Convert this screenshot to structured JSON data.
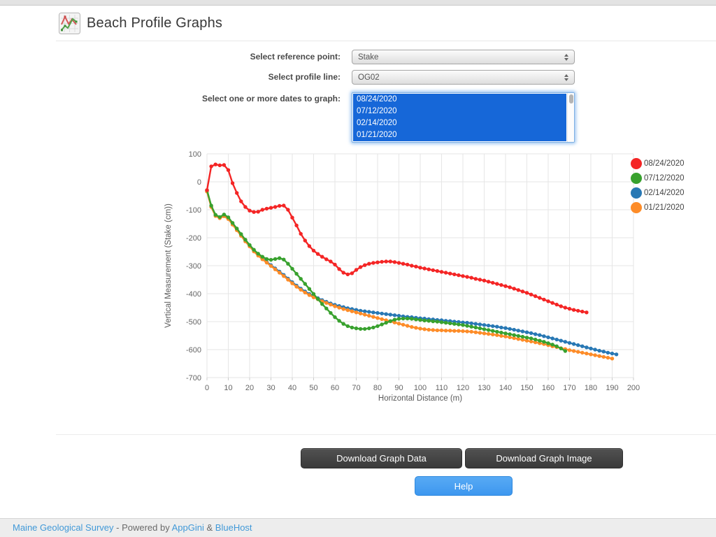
{
  "page": {
    "title": "Beach Profile Graphs",
    "icon": "line-chart-icon"
  },
  "form": {
    "reference_label": "Select reference point:",
    "reference_value": "Stake",
    "profile_label": "Select profile line:",
    "profile_value": "OG02",
    "dates_label": "Select one or more dates to graph:",
    "date_options": [
      "08/24/2020",
      "07/12/2020",
      "02/14/2020",
      "01/21/2020"
    ],
    "selected_dates": [
      "08/24/2020",
      "07/12/2020",
      "02/14/2020",
      "01/21/2020"
    ]
  },
  "buttons": {
    "download_data": "Download Graph Data",
    "download_image": "Download Graph Image",
    "help": "Help"
  },
  "footer": {
    "link1": "Maine Geological Survey",
    "sep1": " - Powered by ",
    "link2": "AppGini",
    "sep2": " & ",
    "link3": "BlueHost"
  },
  "colors": {
    "selection_blue": "#1667d8",
    "link_blue": "#4199d8",
    "help_button_blue": "#459ff1",
    "dark_button_gray": "#444444",
    "grid_gray": "#e6e6e6",
    "tick_text_gray": "#656565"
  },
  "chart_data": {
    "type": "line",
    "title": "",
    "xlabel": "Horizontal Distance (m)",
    "ylabel": "Vertical Measurement (Stake (cm))",
    "xlim": [
      0,
      200
    ],
    "ylim": [
      -700,
      100
    ],
    "xticks": [
      0,
      10,
      20,
      30,
      40,
      50,
      60,
      70,
      80,
      90,
      100,
      110,
      120,
      130,
      140,
      150,
      160,
      170,
      180,
      190,
      200
    ],
    "yticks": [
      100,
      0,
      -100,
      -200,
      -300,
      -400,
      -500,
      -600,
      -700
    ],
    "grid": true,
    "legend_position": "right",
    "marker": "circle",
    "series": [
      {
        "name": "08/24/2020",
        "color": "#f42525",
        "x": [
          0,
          2,
          4,
          6,
          8,
          10,
          12,
          14,
          16,
          18,
          20,
          22,
          24,
          26,
          28,
          30,
          32,
          34,
          36,
          38,
          40,
          42,
          44,
          46,
          48,
          50,
          52,
          54,
          56,
          58,
          60,
          62,
          64,
          66,
          68,
          70,
          72,
          74,
          76,
          78,
          80,
          82,
          84,
          86,
          88,
          90,
          92,
          94,
          96,
          98,
          100,
          102,
          104,
          106,
          108,
          110,
          112,
          114,
          116,
          118,
          120,
          122,
          124,
          126,
          128,
          130,
          132,
          134,
          136,
          138,
          140,
          142,
          144,
          146,
          148,
          150,
          152,
          154,
          156,
          158,
          160,
          162,
          164,
          166,
          168,
          170,
          172,
          174,
          176,
          178
        ],
        "y": [
          -30,
          55,
          62,
          59,
          60,
          42,
          -5,
          -40,
          -70,
          -90,
          -103,
          -108,
          -107,
          -100,
          -96,
          -93,
          -90,
          -86,
          -85,
          -100,
          -128,
          -156,
          -186,
          -210,
          -230,
          -246,
          -258,
          -268,
          -277,
          -285,
          -296,
          -312,
          -325,
          -331,
          -327,
          -315,
          -305,
          -298,
          -293,
          -290,
          -288,
          -286,
          -285,
          -285,
          -287,
          -290,
          -293,
          -296,
          -300,
          -303,
          -307,
          -310,
          -313,
          -316,
          -319,
          -322,
          -325,
          -328,
          -331,
          -334,
          -337,
          -340,
          -343,
          -347,
          -350,
          -353,
          -357,
          -361,
          -365,
          -369,
          -373,
          -377,
          -382,
          -387,
          -392,
          -397,
          -403,
          -409,
          -415,
          -421,
          -427,
          -433,
          -439,
          -445,
          -450,
          -454,
          -458,
          -461,
          -464,
          -467
        ]
      },
      {
        "name": "07/12/2020",
        "color": "#38a12e",
        "x": [
          0,
          2,
          4,
          6,
          8,
          10,
          12,
          14,
          16,
          18,
          20,
          22,
          24,
          26,
          28,
          30,
          32,
          34,
          36,
          38,
          40,
          42,
          44,
          46,
          48,
          50,
          52,
          54,
          56,
          58,
          60,
          62,
          64,
          66,
          68,
          70,
          72,
          74,
          76,
          78,
          80,
          82,
          84,
          86,
          88,
          90,
          92,
          94,
          96,
          98,
          100,
          102,
          104,
          106,
          108,
          110,
          112,
          114,
          116,
          118,
          120,
          122,
          124,
          126,
          128,
          130,
          132,
          134,
          136,
          138,
          140,
          142,
          144,
          146,
          148,
          150,
          152,
          154,
          156,
          158,
          160,
          162,
          164,
          166,
          168
        ],
        "y": [
          -30,
          -85,
          -118,
          -126,
          -117,
          -127,
          -147,
          -167,
          -187,
          -207,
          -226,
          -243,
          -257,
          -268,
          -276,
          -279,
          -276,
          -273,
          -278,
          -293,
          -311,
          -329,
          -347,
          -365,
          -383,
          -401,
          -419,
          -437,
          -453,
          -469,
          -484,
          -497,
          -508,
          -516,
          -521,
          -524,
          -526,
          -526,
          -524,
          -521,
          -516,
          -510,
          -504,
          -498,
          -493,
          -490,
          -489,
          -489,
          -490,
          -492,
          -494,
          -496,
          -497,
          -499,
          -500,
          -502,
          -504,
          -506,
          -508,
          -510,
          -512,
          -515,
          -518,
          -521,
          -524,
          -527,
          -530,
          -533,
          -536,
          -539,
          -542,
          -545,
          -548,
          -551,
          -554,
          -557,
          -560,
          -564,
          -568,
          -572,
          -577,
          -582,
          -588,
          -596,
          -605
        ]
      },
      {
        "name": "02/14/2020",
        "color": "#2878b4",
        "x": [
          0,
          2,
          4,
          6,
          8,
          10,
          12,
          14,
          16,
          18,
          20,
          22,
          24,
          26,
          28,
          30,
          32,
          34,
          36,
          38,
          40,
          42,
          44,
          46,
          48,
          50,
          52,
          54,
          56,
          58,
          60,
          62,
          64,
          66,
          68,
          70,
          72,
          74,
          76,
          78,
          80,
          82,
          84,
          86,
          88,
          90,
          92,
          94,
          96,
          98,
          100,
          102,
          104,
          106,
          108,
          110,
          112,
          114,
          116,
          118,
          120,
          122,
          124,
          126,
          128,
          130,
          132,
          134,
          136,
          138,
          140,
          142,
          144,
          146,
          148,
          150,
          152,
          154,
          156,
          158,
          160,
          162,
          164,
          166,
          168,
          170,
          172,
          174,
          176,
          178,
          180,
          182,
          184,
          186,
          188,
          190,
          192
        ],
        "y": [
          -32,
          -88,
          -120,
          -128,
          -120,
          -130,
          -150,
          -170,
          -190,
          -210,
          -228,
          -246,
          -261,
          -274,
          -286,
          -298,
          -310,
          -321,
          -333,
          -346,
          -359,
          -371,
          -382,
          -392,
          -401,
          -409,
          -416,
          -423,
          -429,
          -435,
          -440,
          -444,
          -448,
          -452,
          -455,
          -458,
          -461,
          -463,
          -465,
          -467,
          -469,
          -471,
          -473,
          -475,
          -477,
          -479,
          -481,
          -483,
          -484,
          -486,
          -488,
          -489,
          -491,
          -492,
          -494,
          -495,
          -497,
          -498,
          -500,
          -501,
          -503,
          -504,
          -506,
          -508,
          -510,
          -512,
          -514,
          -516,
          -518,
          -521,
          -523,
          -526,
          -529,
          -532,
          -535,
          -538,
          -541,
          -545,
          -548,
          -552,
          -556,
          -560,
          -564,
          -568,
          -572,
          -576,
          -580,
          -584,
          -588,
          -592,
          -596,
          -600,
          -604,
          -607,
          -611,
          -614,
          -617
        ]
      },
      {
        "name": "01/21/2020",
        "color": "#fd8c28",
        "x": [
          0,
          2,
          4,
          6,
          8,
          10,
          12,
          14,
          16,
          18,
          20,
          22,
          24,
          26,
          28,
          30,
          32,
          34,
          36,
          38,
          40,
          42,
          44,
          46,
          48,
          50,
          52,
          54,
          56,
          58,
          60,
          62,
          64,
          66,
          68,
          70,
          72,
          74,
          76,
          78,
          80,
          82,
          84,
          86,
          88,
          90,
          92,
          94,
          96,
          98,
          100,
          102,
          104,
          106,
          108,
          110,
          112,
          114,
          116,
          118,
          120,
          122,
          124,
          126,
          128,
          130,
          132,
          134,
          136,
          138,
          140,
          142,
          144,
          146,
          148,
          150,
          152,
          154,
          156,
          158,
          160,
          162,
          164,
          166,
          168,
          170,
          172,
          174,
          176,
          178,
          180,
          182,
          184,
          186,
          188,
          190
        ],
        "y": [
          -35,
          -90,
          -122,
          -130,
          -123,
          -133,
          -153,
          -173,
          -193,
          -213,
          -231,
          -249,
          -264,
          -277,
          -289,
          -301,
          -313,
          -325,
          -337,
          -350,
          -363,
          -375,
          -386,
          -396,
          -405,
          -413,
          -420,
          -427,
          -433,
          -439,
          -445,
          -450,
          -455,
          -459,
          -463,
          -467,
          -471,
          -475,
          -479,
          -483,
          -487,
          -491,
          -495,
          -499,
          -503,
          -507,
          -511,
          -515,
          -519,
          -522,
          -525,
          -527,
          -529,
          -530,
          -531,
          -531,
          -532,
          -532,
          -533,
          -533,
          -534,
          -535,
          -536,
          -538,
          -540,
          -542,
          -544,
          -546,
          -548,
          -551,
          -553,
          -556,
          -559,
          -562,
          -565,
          -568,
          -571,
          -574,
          -577,
          -580,
          -584,
          -588,
          -591,
          -595,
          -598,
          -602,
          -605,
          -608,
          -611,
          -614,
          -617,
          -620,
          -623,
          -626,
          -629,
          -632
        ]
      }
    ]
  }
}
